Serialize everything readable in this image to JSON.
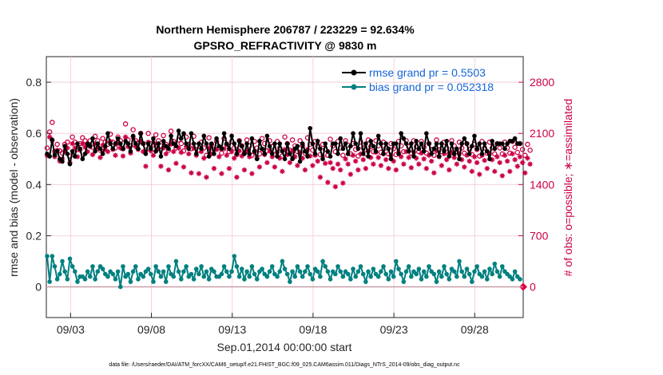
{
  "chart_data": {
    "type": "line",
    "title_line1": "Northern Hemisphere 206787 / 223229 = 92.634%",
    "title_line2": "GPSRO_REFRACTIVITY @ 9830 m",
    "xlabel": "Sep.01,2014 00:00:00 start",
    "ylabel_left": "rmse and bias (model - observation)",
    "ylabel_right": "# of obs: o=possible; ∗=assimilated",
    "footer": "data file: /Users/raeder/DAI/ATM_forcXX/CAM6_setup/f.e21.FHIST_BGC.f09_025.CAM6assim.011/Diags_NTrS_2014-09/obs_diag_output.nc",
    "x_ticks": [
      "09/03",
      "09/08",
      "09/13",
      "09/18",
      "09/23",
      "09/28"
    ],
    "x_tick_days": [
      3,
      8,
      13,
      18,
      23,
      28
    ],
    "x_range_days": [
      1.5,
      31
    ],
    "y_left_ticks": [
      "0",
      "0.2",
      "0.4",
      "0.6",
      "0.8"
    ],
    "y_left_tick_values": [
      0,
      0.2,
      0.4,
      0.6,
      0.8
    ],
    "y_left_range": [
      -0.12,
      0.9
    ],
    "y_right_ticks": [
      "0",
      "700",
      "1400",
      "2100",
      "2800"
    ],
    "y_right_tick_values": [
      0,
      700,
      1400,
      2100,
      2800
    ],
    "y_right_range": [
      -420,
      3150
    ],
    "series": [
      {
        "name": "rmse grand pr = 0.5503",
        "color": "#000000",
        "axis": "left",
        "values": [
          0.52,
          0.51,
          0.575,
          0.515,
          0.53,
          0.5,
          0.49,
          0.55,
          0.52,
          0.48,
          0.53,
          0.51,
          0.56,
          0.54,
          0.5,
          0.52,
          0.56,
          0.55,
          0.58,
          0.53,
          0.56,
          0.54,
          0.52,
          0.55,
          0.6,
          0.56,
          0.54,
          0.56,
          0.58,
          0.56,
          0.54,
          0.57,
          0.56,
          0.53,
          0.59,
          0.56,
          0.54,
          0.6,
          0.56,
          0.52,
          0.56,
          0.54,
          0.58,
          0.53,
          0.56,
          0.51,
          0.57,
          0.55,
          0.54,
          0.59,
          0.56,
          0.55,
          0.61,
          0.58,
          0.6,
          0.56,
          0.54,
          0.6,
          0.56,
          0.52,
          0.56,
          0.54,
          0.59,
          0.56,
          0.51,
          0.56,
          0.52,
          0.58,
          0.55,
          0.54,
          0.6,
          0.56,
          0.54,
          0.59,
          0.56,
          0.52,
          0.57,
          0.55,
          0.52,
          0.56,
          0.52,
          0.58,
          0.53,
          0.5,
          0.57,
          0.54,
          0.52,
          0.59,
          0.55,
          0.52,
          0.56,
          0.51,
          0.56,
          0.53,
          0.5,
          0.56,
          0.52,
          0.5,
          0.54,
          0.55,
          0.49,
          0.56,
          0.53,
          0.51,
          0.62,
          0.56,
          0.52,
          0.57,
          0.54,
          0.5,
          0.56,
          0.53,
          0.51,
          0.56,
          0.56,
          0.52,
          0.58,
          0.54,
          0.56,
          0.52,
          0.55,
          0.6,
          0.56,
          0.54,
          0.6,
          0.52,
          0.56,
          0.51,
          0.57,
          0.55,
          0.53,
          0.59,
          0.56,
          0.52,
          0.56,
          0.54,
          0.5,
          0.56,
          0.56,
          0.52,
          0.6,
          0.58,
          0.56,
          0.53,
          0.56,
          0.51,
          0.57,
          0.54,
          0.56,
          0.53,
          0.6,
          0.56,
          0.52,
          0.54,
          0.56,
          0.51,
          0.56,
          0.53,
          0.57,
          0.51,
          0.56,
          0.52,
          0.54,
          0.5,
          0.56,
          0.58,
          0.56,
          0.52,
          0.55,
          0.59,
          0.54,
          0.56,
          0.52,
          0.56,
          0.53,
          0.5,
          0.57,
          0.54,
          0.56,
          0.56,
          0.56,
          0.54,
          0.56,
          0.57,
          0.57,
          0.58,
          0.56,
          0.56
        ]
      },
      {
        "name": "bias grand pr = 0.052318",
        "color": "#008080",
        "axis": "left",
        "values": [
          0.12,
          0.02,
          0.12,
          0.08,
          0.03,
          0.05,
          0.1,
          0.06,
          0.03,
          0.11,
          0.08,
          0.06,
          0.02,
          0.04,
          0.04,
          0.03,
          0.06,
          0.04,
          0.08,
          0.03,
          0.06,
          0.08,
          0.07,
          0.05,
          0.04,
          0.06,
          0.05,
          0.03,
          0.06,
          0.0,
          0.08,
          0.04,
          0.05,
          0.02,
          0.06,
          0.08,
          0.03,
          0.05,
          0.04,
          0.06,
          0.07,
          0.05,
          0.02,
          0.08,
          0.06,
          0.04,
          0.06,
          0.02,
          0.08,
          0.05,
          0.04,
          0.1,
          0.06,
          0.03,
          0.06,
          0.08,
          0.04,
          0.05,
          0.03,
          0.07,
          0.05,
          0.08,
          0.04,
          0.06,
          0.03,
          0.07,
          0.06,
          0.04,
          0.04,
          0.05,
          0.08,
          0.06,
          0.04,
          0.06,
          0.12,
          0.08,
          0.04,
          0.07,
          0.03,
          0.06,
          0.04,
          0.08,
          0.05,
          0.03,
          0.06,
          0.07,
          0.05,
          0.04,
          0.06,
          0.08,
          0.05,
          0.04,
          0.06,
          0.1,
          0.07,
          0.05,
          0.02,
          0.06,
          0.04,
          0.08,
          0.06,
          0.04,
          0.06,
          0.08,
          0.05,
          0.03,
          0.07,
          0.06,
          0.04,
          0.1,
          0.08,
          0.06,
          0.03,
          0.06,
          0.05,
          0.08,
          0.06,
          0.04,
          0.06,
          0.05,
          0.03,
          0.07,
          0.04,
          0.06,
          0.08,
          0.05,
          0.02,
          0.06,
          0.04,
          0.07,
          0.05,
          0.04,
          0.06,
          0.08,
          0.05,
          0.03,
          0.06,
          0.04,
          0.1,
          0.07,
          0.05,
          0.02,
          0.06,
          0.08,
          0.04,
          0.06,
          0.05,
          0.07,
          0.03,
          0.06,
          0.04,
          0.08,
          0.06,
          0.05,
          0.02,
          0.06,
          0.04,
          0.08,
          0.05,
          0.03,
          0.07,
          0.06,
          0.04,
          0.1,
          0.06,
          0.04,
          0.07,
          0.05,
          0.02,
          0.06,
          0.08,
          0.05,
          0.04,
          0.06,
          0.03,
          0.07,
          0.05,
          0.09,
          0.06,
          0.04,
          0.08,
          0.06,
          0.05,
          0.04,
          0.03,
          0.06,
          0.04,
          0.03
        ]
      },
      {
        "name": "# obs possible",
        "color": "#cc0044",
        "axis": "right",
        "marker": "o",
        "values": [
          1900,
          2120,
          2250,
          1850,
          1950,
          1860,
          1830,
          1950,
          1980,
          1790,
          2050,
          1980,
          1880,
          1960,
          2040,
          2000,
          1950,
          2000,
          1910,
          2060,
          2000,
          1870,
          2030,
          1980,
          1950,
          2090,
          1980,
          1900,
          2050,
          2000,
          1890,
          2230,
          2010,
          1930,
          2150,
          2000,
          1970,
          2100,
          1960,
          1870,
          2100,
          1960,
          1890,
          2080,
          2000,
          1930,
          2070,
          1950,
          1870,
          2130,
          1990,
          1900,
          2010,
          1960,
          1860,
          2050,
          1950,
          1890,
          2060,
          1930,
          1870,
          1980,
          1900,
          1800,
          2040,
          1950,
          1880,
          1990,
          1900,
          1830,
          2030,
          1950,
          1850,
          1990,
          1900,
          1810,
          2000,
          1930,
          1830,
          2010,
          1930,
          1800,
          1990,
          1900,
          1820,
          2030,
          1960,
          1860,
          2000,
          1920,
          1810,
          1990,
          1900,
          1790,
          2050,
          1960,
          1870,
          2010,
          1930,
          1850,
          2000,
          1930,
          1830,
          2040,
          1950,
          1870,
          1990,
          1930,
          1810,
          1950,
          1880,
          1800,
          2020,
          1930,
          1850,
          1990,
          1900,
          1800,
          2000,
          1940,
          1820,
          1960,
          1880,
          1790,
          1980,
          1900,
          1820,
          2010,
          1920,
          1850,
          2000,
          1930,
          1840,
          1980,
          1900,
          1820,
          1960,
          1890,
          1810,
          1990,
          1930,
          1850,
          2000,
          1920,
          1830,
          2000,
          1920,
          1850,
          1990,
          1910,
          1830,
          1960,
          1880,
          1800,
          2010,
          1930,
          1850,
          1980,
          1900,
          1820,
          2000,
          1930,
          1850,
          1980,
          1900,
          1830,
          1960,
          1880,
          1810,
          1950,
          1880,
          1790,
          1990,
          1900,
          1830,
          1980,
          1900,
          1820,
          1960,
          1900,
          1820,
          1980,
          1900,
          1830,
          1990,
          1910,
          1840,
          1960,
          1880,
          1800,
          1950,
          1870
        ]
      },
      {
        "name": "# obs assimilated",
        "color": "#cc0044",
        "axis": "right",
        "marker": "*",
        "values": [
          1800,
          2050,
          2000,
          1780,
          1870,
          1720,
          1750,
          1860,
          1900,
          1700,
          1960,
          1900,
          1780,
          1870,
          1960,
          1910,
          1850,
          1920,
          1810,
          1960,
          1900,
          1770,
          1940,
          1880,
          1850,
          1990,
          1880,
          1800,
          1960,
          1900,
          1790,
          2050,
          1920,
          1830,
          2050,
          1920,
          1880,
          1990,
          1850,
          1650,
          1980,
          1860,
          1800,
          1960,
          1890,
          1650,
          1900,
          1820,
          1600,
          1950,
          1850,
          1690,
          1900,
          1840,
          1640,
          1920,
          1820,
          1560,
          1900,
          1800,
          1550,
          1850,
          1760,
          1500,
          1900,
          1820,
          1620,
          1880,
          1780,
          1550,
          1890,
          1800,
          1620,
          1850,
          1760,
          1500,
          1860,
          1790,
          1600,
          1860,
          1780,
          1550,
          1850,
          1760,
          1640,
          1880,
          1810,
          1700,
          1860,
          1780,
          1640,
          1840,
          1760,
          1580,
          1880,
          1810,
          1700,
          1860,
          1780,
          1660,
          1840,
          1760,
          1600,
          1880,
          1790,
          1660,
          1800,
          1720,
          1500,
          1780,
          1690,
          1430,
          1700,
          1620,
          1370,
          1680,
          1600,
          1420,
          1750,
          1680,
          1540,
          1800,
          1720,
          1600,
          1820,
          1740,
          1620,
          1860,
          1770,
          1680,
          1840,
          1770,
          1660,
          1820,
          1740,
          1620,
          1800,
          1720,
          1600,
          1840,
          1780,
          1680,
          1850,
          1770,
          1630,
          1840,
          1760,
          1680,
          1830,
          1750,
          1620,
          1800,
          1720,
          1560,
          1860,
          1780,
          1660,
          1820,
          1740,
          1600,
          1840,
          1770,
          1680,
          1820,
          1740,
          1640,
          1800,
          1720,
          1580,
          1780,
          1700,
          1540,
          1800,
          1730,
          1620,
          1820,
          1740,
          1580,
          1780,
          1700,
          1520,
          1800,
          1720,
          1580,
          1820,
          1740,
          1650,
          1780,
          1700,
          1560,
          1760,
          1680
        ]
      }
    ]
  }
}
